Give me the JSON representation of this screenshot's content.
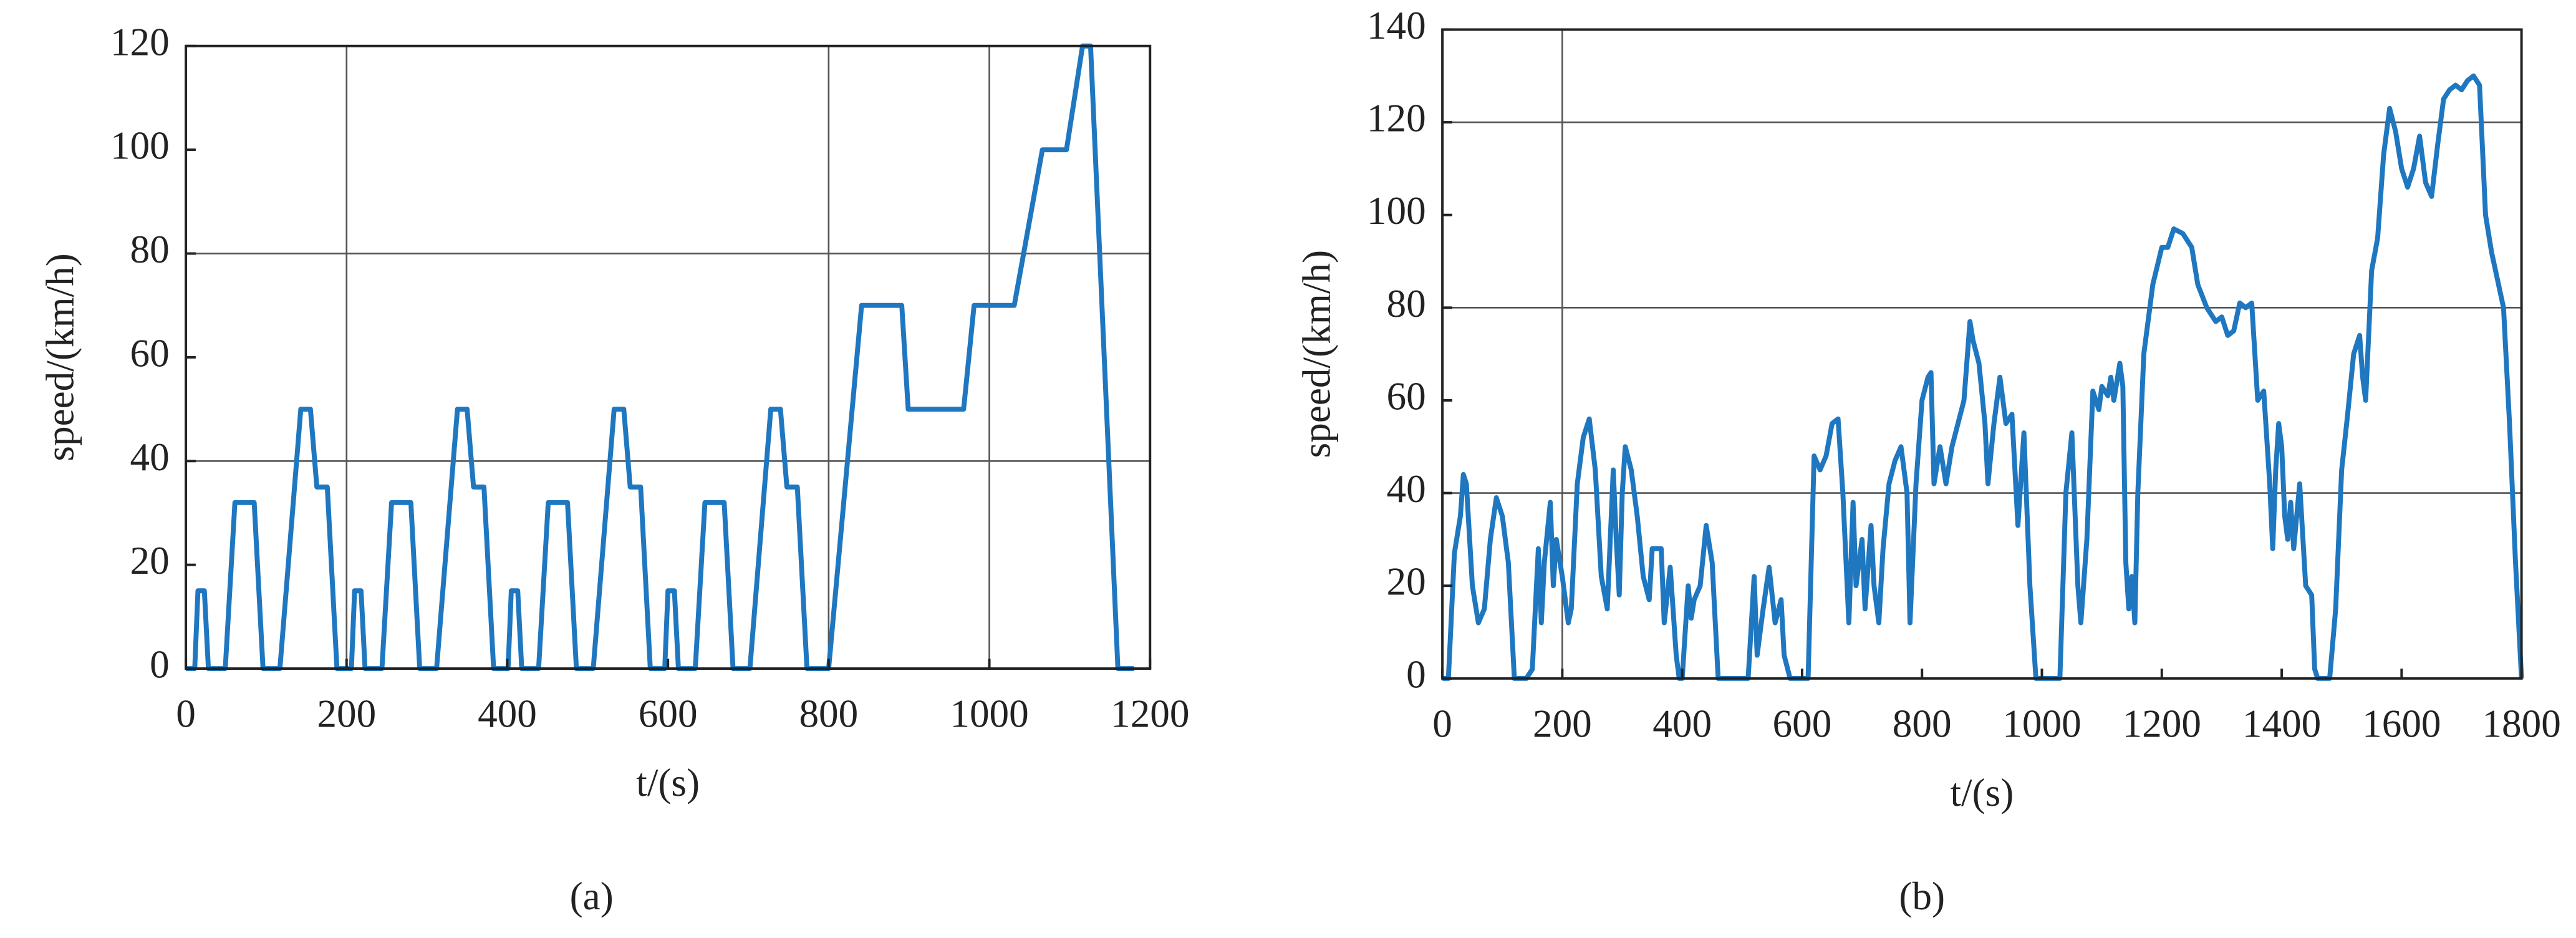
{
  "chart_data": [
    {
      "type": "line",
      "color": "#1f77c0",
      "xlabel": "t/(s)",
      "ylabel": "speed/(km/h)",
      "caption": "(a)",
      "xlim": [
        0,
        1200
      ],
      "xticks": [
        0,
        200,
        400,
        600,
        800,
        1000,
        1200
      ],
      "ylim": [
        0,
        120
      ],
      "yticks": [
        0,
        20,
        40,
        60,
        80,
        100,
        120
      ],
      "xgrid": [
        200,
        800,
        1000
      ],
      "ygrid": [
        40,
        80
      ],
      "x": [
        0,
        11,
        15,
        23,
        28,
        49,
        61,
        85,
        96,
        117,
        143,
        155,
        163,
        176,
        188,
        195,
        206,
        210,
        218,
        223,
        244,
        256,
        280,
        291,
        312,
        338,
        350,
        358,
        371,
        383,
        390,
        401,
        405,
        413,
        418,
        439,
        451,
        475,
        486,
        507,
        533,
        545,
        553,
        566,
        578,
        585,
        596,
        600,
        608,
        613,
        634,
        646,
        670,
        681,
        702,
        728,
        740,
        748,
        761,
        773,
        780,
        800,
        841,
        891,
        899,
        968,
        981,
        1031,
        1066,
        1096,
        1116,
        1126,
        1160,
        1180
      ],
      "values": [
        0,
        0,
        15,
        15,
        0,
        0,
        32,
        32,
        0,
        0,
        50,
        50,
        35,
        35,
        0,
        0,
        0,
        15,
        15,
        0,
        0,
        32,
        32,
        0,
        0,
        50,
        50,
        35,
        35,
        0,
        0,
        0,
        15,
        15,
        0,
        0,
        32,
        32,
        0,
        0,
        50,
        50,
        35,
        35,
        0,
        0,
        0,
        15,
        15,
        0,
        0,
        32,
        32,
        0,
        0,
        50,
        50,
        35,
        35,
        0,
        0,
        0,
        70,
        70,
        50,
        50,
        70,
        70,
        100,
        100,
        120,
        120,
        0,
        0
      ]
    },
    {
      "type": "line",
      "color": "#1f77c0",
      "xlabel": "t/(s)",
      "ylabel": "speed/(km/h)",
      "caption": "(b)",
      "xlim": [
        0,
        1800
      ],
      "xticks": [
        0,
        200,
        400,
        600,
        800,
        1000,
        1200,
        1400,
        1600,
        1800
      ],
      "ylim": [
        0,
        140
      ],
      "yticks": [
        0,
        20,
        40,
        60,
        80,
        100,
        120,
        140
      ],
      "xgrid": [
        200
      ],
      "ygrid": [
        40,
        80,
        120
      ],
      "x": [
        0,
        10,
        20,
        30,
        35,
        40,
        50,
        60,
        70,
        80,
        90,
        100,
        110,
        120,
        140,
        150,
        160,
        165,
        170,
        180,
        185,
        190,
        200,
        210,
        215,
        225,
        235,
        245,
        255,
        265,
        275,
        285,
        290,
        295,
        300,
        305,
        315,
        325,
        335,
        345,
        350,
        365,
        370,
        380,
        390,
        395,
        400,
        410,
        415,
        420,
        430,
        440,
        450,
        460,
        510,
        520,
        525,
        535,
        545,
        555,
        565,
        570,
        580,
        610,
        620,
        630,
        640,
        650,
        660,
        668,
        678,
        685,
        690,
        700,
        705,
        715,
        720,
        728,
        735,
        745,
        755,
        765,
        775,
        780,
        790,
        800,
        810,
        815,
        820,
        830,
        840,
        850,
        860,
        870,
        880,
        885,
        895,
        905,
        910,
        920,
        930,
        940,
        950,
        960,
        970,
        980,
        990,
        1030,
        1040,
        1050,
        1060,
        1065,
        1075,
        1085,
        1095,
        1100,
        1110,
        1115,
        1120,
        1130,
        1135,
        1140,
        1145,
        1150,
        1155,
        1160,
        1170,
        1185,
        1200,
        1210,
        1220,
        1235,
        1250,
        1260,
        1275,
        1290,
        1300,
        1310,
        1320,
        1330,
        1340,
        1350,
        1360,
        1370,
        1380,
        1385,
        1390,
        1395,
        1400,
        1405,
        1410,
        1415,
        1420,
        1430,
        1440,
        1450,
        1455,
        1460,
        1480,
        1490,
        1500,
        1510,
        1520,
        1530,
        1535,
        1540,
        1550,
        1560,
        1570,
        1580,
        1590,
        1600,
        1610,
        1620,
        1630,
        1640,
        1650,
        1660,
        1670,
        1680,
        1690,
        1700,
        1710,
        1720,
        1730,
        1740,
        1750,
        1760,
        1770,
        1780,
        1790,
        1800
      ],
      "values": [
        0,
        0,
        27,
        35,
        44,
        42,
        20,
        12,
        15,
        30,
        39,
        35,
        25,
        0,
        0,
        2,
        28,
        12,
        25,
        38,
        20,
        30,
        22,
        12,
        15,
        42,
        52,
        56,
        45,
        22,
        15,
        45,
        30,
        18,
        40,
        50,
        45,
        35,
        22,
        17,
        28,
        28,
        12,
        24,
        5,
        0,
        0,
        20,
        13,
        17,
        20,
        33,
        25,
        0,
        0,
        22,
        5,
        15,
        24,
        12,
        17,
        5,
        0,
        0,
        48,
        45,
        48,
        55,
        56,
        40,
        12,
        38,
        20,
        30,
        15,
        33,
        20,
        12,
        28,
        42,
        47,
        50,
        40,
        12,
        42,
        60,
        65,
        66,
        42,
        50,
        42,
        50,
        55,
        60,
        77,
        73,
        68,
        55,
        42,
        55,
        65,
        55,
        57,
        33,
        53,
        20,
        0,
        0,
        40,
        53,
        20,
        12,
        30,
        62,
        58,
        63,
        61,
        65,
        60,
        68,
        63,
        25,
        15,
        22,
        12,
        40,
        70,
        85,
        93,
        93,
        97,
        96,
        93,
        85,
        80,
        77,
        78,
        74,
        75,
        81,
        80,
        81,
        60,
        62,
        42,
        28,
        45,
        55,
        50,
        35,
        30,
        38,
        28,
        42,
        20,
        18,
        2,
        0,
        0,
        15,
        45,
        57,
        70,
        74,
        65,
        60,
        88,
        95,
        113,
        123,
        118,
        110,
        106,
        110,
        117,
        107,
        104,
        115,
        125,
        127,
        128,
        127,
        129,
        130,
        128,
        100,
        92,
        86,
        80,
        55,
        25,
        0
      ]
    }
  ]
}
